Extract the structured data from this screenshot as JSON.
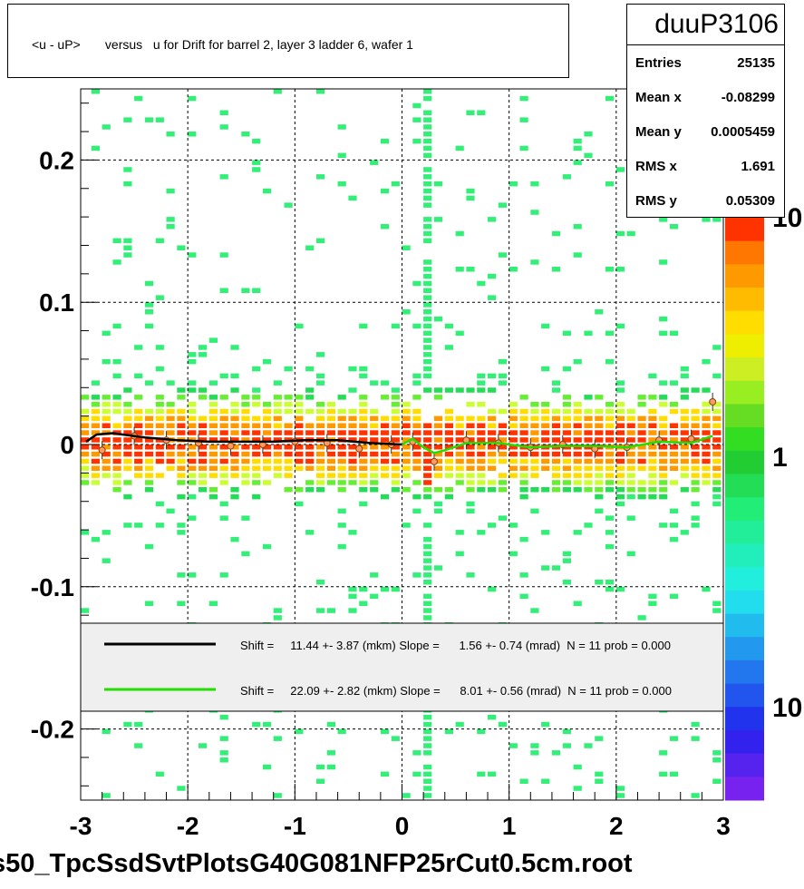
{
  "title": "<u - uP>       versus   u for Drift for barrel 2, layer 3 ladder 6, wafer 1",
  "stats": {
    "name": "duuP3106",
    "rows": [
      {
        "label": "Entries",
        "value": "25135"
      },
      {
        "label": "Mean x",
        "value": "-0.08299"
      },
      {
        "label": "Mean y",
        "value": "0.0005459"
      },
      {
        "label": "RMS x",
        "value": "1.691"
      },
      {
        "label": "RMS y",
        "value": "0.05309"
      }
    ]
  },
  "legend": {
    "entries": [
      {
        "text": "Shift =     11.44 +- 3.87 (mkm) Slope =      1.56 +- 0.74 (mrad)  N = 11 prob = 0.000",
        "color": "#000000"
      },
      {
        "text": "Shift =     22.09 +- 2.82 (mkm) Slope =      8.01 +- 0.56 (mrad)  N = 11 prob = 0.000",
        "color": "#22dd00"
      }
    ]
  },
  "palette": {
    "labels": [
      "10",
      "1",
      "10"
    ]
  },
  "file_label": "s50_TpcSsdSvtPlotsG40G081NFP25rCut0.5cm.root",
  "chart_data": {
    "type": "heatmap",
    "xlim": [
      -3,
      3
    ],
    "ylim": [
      -0.25,
      0.25
    ],
    "x_ticks": [
      "-3",
      "-2",
      "-1",
      "0",
      "1",
      "2",
      "3"
    ],
    "y_ticks": [
      "-0.2",
      "-0.1",
      "0",
      "0.1",
      "0.2"
    ],
    "grid": true,
    "density_band": {
      "center": 0.0,
      "sigma": 0.022,
      "spike_x": 0.22
    },
    "profile_x": [
      -2.8,
      -2.5,
      -2.2,
      -1.9,
      -1.6,
      -1.3,
      -1.0,
      -0.7,
      -0.4,
      -0.1,
      0.1,
      0.3,
      0.6,
      0.9,
      1.2,
      1.5,
      1.8,
      2.1,
      2.4,
      2.7,
      2.9
    ],
    "profile_y": [
      -0.004,
      0.006,
      0.003,
      0.001,
      -0.001,
      0.0,
      0.002,
      0.001,
      -0.003,
      0.0,
      0.002,
      -0.012,
      0.003,
      0.001,
      -0.002,
      0.0,
      -0.003,
      -0.002,
      0.003,
      0.004,
      0.03
    ],
    "series": [
      {
        "name": "",
        "color": "#000000",
        "x": [
          -2.95,
          -2.85,
          -2.7,
          -2.4,
          -2.1,
          -1.8,
          -1.5,
          -1.2,
          -0.9,
          -0.6,
          -0.3,
          0.0
        ],
        "y": [
          0.002,
          0.007,
          0.008,
          0.005,
          0.003,
          0.002,
          0.002,
          0.002,
          0.003,
          0.003,
          0.001,
          0.0
        ]
      },
      {
        "name": "",
        "color": "#22dd00",
        "x": [
          0.0,
          0.1,
          0.2,
          0.3,
          0.4,
          0.6,
          0.9,
          1.2,
          1.5,
          1.8,
          2.1,
          2.4,
          2.7,
          2.9
        ],
        "y": [
          0.0,
          0.004,
          -0.002,
          -0.006,
          -0.004,
          0.001,
          0.001,
          -0.002,
          -0.001,
          -0.001,
          -0.002,
          0.002,
          0.001,
          0.006
        ]
      }
    ]
  }
}
